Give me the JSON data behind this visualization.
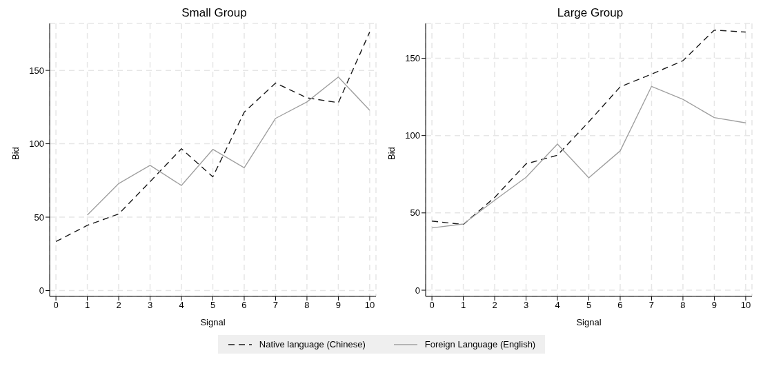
{
  "chart_data": [
    {
      "type": "line",
      "title": "Small Group",
      "xlabel": "Signal",
      "ylabel": "Bid",
      "x": [
        0,
        1,
        2,
        3,
        4,
        5,
        6,
        7,
        8,
        9,
        10
      ],
      "series": [
        {
          "name": "Native language (Chinese)",
          "color": "#1a1a1a",
          "line_style": "dashed",
          "values": [
            33.4,
            44.4,
            52.2,
            74.2,
            96.6,
            77.5,
            121.5,
            141.4,
            131.3,
            128,
            176.2
          ]
        },
        {
          "name": "Foreign Language (English)",
          "color": "#a0a0a0",
          "line_style": "solid",
          "values": [
            null,
            51.4,
            72.9,
            85.3,
            71.6,
            96.2,
            83.7,
            117.3,
            128.5,
            145.5,
            122.8
          ]
        }
      ],
      "xlim": [
        -0.2,
        10.2
      ],
      "xticks": [
        0,
        1,
        2,
        3,
        4,
        5,
        6,
        7,
        8,
        9,
        10
      ],
      "ylim": [
        -4,
        182
      ],
      "yticks": [
        0,
        50,
        100,
        150
      ],
      "grid": true,
      "legend": "bottom",
      "marker": "none"
    },
    {
      "type": "line",
      "title": "Large Group",
      "xlabel": "Signal",
      "ylabel": "Bid",
      "x": [
        0,
        1,
        2,
        3,
        4,
        5,
        6,
        7,
        8,
        9,
        10
      ],
      "series": [
        {
          "color": "#1a1a1a",
          "line_style": "dashed",
          "values": [
            44.7,
            42.5,
            60,
            81.7,
            87.3,
            108.9,
            131.5,
            139.7,
            148.4,
            168.2,
            166.9
          ]
        },
        {
          "color": "#a0a0a0",
          "line_style": "solid",
          "values": [
            40.3,
            42.8,
            58.2,
            73,
            94.5,
            72.7,
            90.1,
            131.8,
            123.4,
            111.6,
            108.2
          ]
        }
      ],
      "xlim": [
        -0.2,
        10.2
      ],
      "xticks": [
        0,
        1,
        2,
        3,
        4,
        5,
        6,
        7,
        8,
        9,
        10
      ],
      "ylim": [
        -4,
        172.5
      ],
      "yticks": [
        0,
        50,
        100,
        150
      ],
      "grid": true,
      "marker": "none"
    }
  ]
}
